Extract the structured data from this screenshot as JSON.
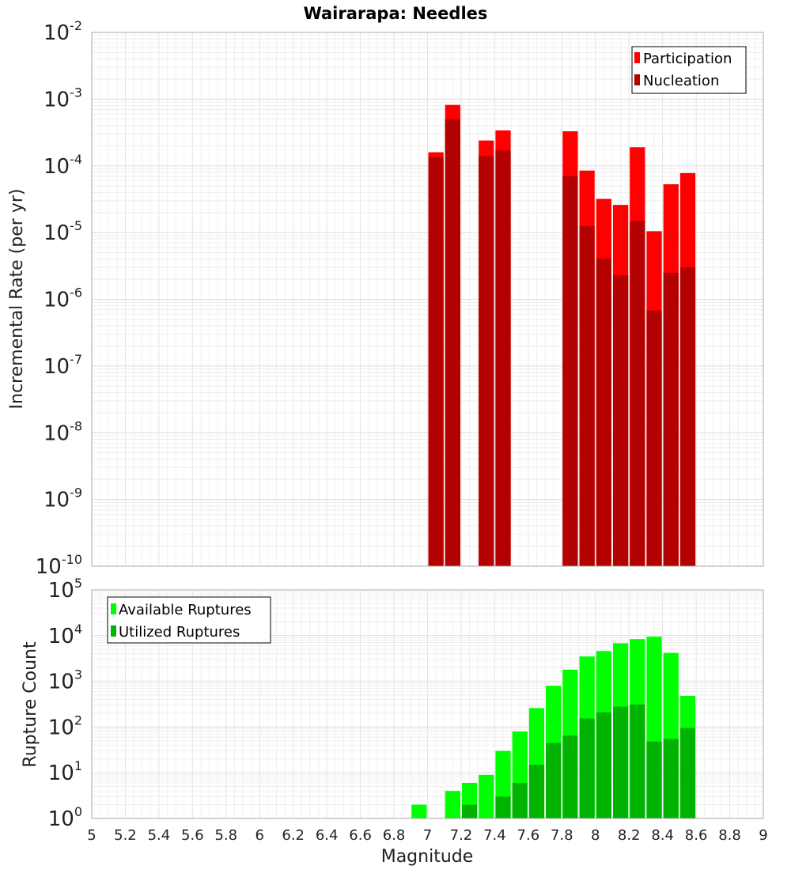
{
  "chart_data": [
    {
      "type": "bar",
      "title": "Wairarapa: Needles",
      "ylabel": "Incremental Rate (per yr)",
      "xlabel": "",
      "y_scale": "log",
      "x_range": [
        5,
        9
      ],
      "y_exp_range": [
        -10,
        -2
      ],
      "y_tick_labels": [
        {
          "exp": "-2"
        },
        {
          "exp": "-3"
        },
        {
          "exp": "-4"
        },
        {
          "exp": "-5"
        },
        {
          "exp": "-6"
        },
        {
          "exp": "-7"
        },
        {
          "exp": "-8"
        },
        {
          "exp": "-9"
        },
        {
          "exp": "-10"
        }
      ],
      "grid": true,
      "legend_position": "top-right",
      "bar_width": 0.1,
      "colors": {
        "participation": "#ff0000",
        "nucleation": "#b30000"
      },
      "series": [
        {
          "name": "Participation",
          "points": [
            [
              7.05,
              0.00016
            ],
            [
              7.15,
              0.00082
            ],
            [
              7.35,
              0.00024
            ],
            [
              7.45,
              0.00034
            ],
            [
              7.85,
              0.00033
            ],
            [
              7.95,
              8.5e-05
            ],
            [
              8.05,
              3.2e-05
            ],
            [
              8.15,
              2.6e-05
            ],
            [
              8.25,
              0.00019
            ],
            [
              8.35,
              1.05e-05
            ],
            [
              8.45,
              5.3e-05
            ],
            [
              8.55,
              7.8e-05
            ]
          ]
        },
        {
          "name": "Nucleation",
          "points": [
            [
              7.05,
              0.000135
            ],
            [
              7.15,
              0.0005
            ],
            [
              7.35,
              0.00014
            ],
            [
              7.45,
              0.00017
            ],
            [
              7.85,
              7e-05
            ],
            [
              7.95,
              1.25e-05
            ],
            [
              8.05,
              4.1e-06
            ],
            [
              8.15,
              2.3e-06
            ],
            [
              8.25,
              1.5e-05
            ],
            [
              8.35,
              6.8e-07
            ],
            [
              8.45,
              2.5e-06
            ],
            [
              8.55,
              3e-06
            ]
          ]
        }
      ]
    },
    {
      "type": "bar",
      "title": "",
      "ylabel": "Rupture Count",
      "xlabel": "Magnitude",
      "y_scale": "log",
      "x_range": [
        5,
        9
      ],
      "y_exp_range": [
        0,
        5
      ],
      "y_tick_labels": [
        {
          "exp": "5"
        },
        {
          "exp": "4"
        },
        {
          "exp": "3"
        },
        {
          "exp": "2"
        },
        {
          "exp": "1"
        },
        {
          "exp": "0"
        }
      ],
      "x_tick_labels": [
        "5",
        "5.2",
        "5.4",
        "5.6",
        "5.8",
        "6",
        "6.2",
        "6.4",
        "6.6",
        "6.8",
        "7",
        "7.2",
        "7.4",
        "7.6",
        "7.8",
        "8",
        "8.2",
        "8.4",
        "8.6",
        "8.8",
        "9"
      ],
      "grid": true,
      "legend_position": "top-left",
      "bar_width": 0.1,
      "colors": {
        "available": "#00ff00",
        "utilized": "#00b300"
      },
      "series": [
        {
          "name": "Available Ruptures",
          "points": [
            [
              6.95,
              2
            ],
            [
              7.05,
              1
            ],
            [
              7.15,
              4
            ],
            [
              7.25,
              6
            ],
            [
              7.35,
              9
            ],
            [
              7.45,
              30
            ],
            [
              7.55,
              80
            ],
            [
              7.65,
              260
            ],
            [
              7.75,
              800
            ],
            [
              7.85,
              1800
            ],
            [
              7.95,
              3500
            ],
            [
              8.05,
              4600
            ],
            [
              8.15,
              6800
            ],
            [
              8.25,
              8400
            ],
            [
              8.35,
              9500
            ],
            [
              8.45,
              4200
            ],
            [
              8.55,
              480
            ],
            [
              8.65,
              1
            ]
          ]
        },
        {
          "name": "Utilized Ruptures",
          "points": [
            [
              7.05,
              1
            ],
            [
              7.15,
              1
            ],
            [
              7.25,
              2
            ],
            [
              7.35,
              1
            ],
            [
              7.45,
              3
            ],
            [
              7.55,
              6
            ],
            [
              7.65,
              15
            ],
            [
              7.75,
              45
            ],
            [
              7.85,
              65
            ],
            [
              7.95,
              155
            ],
            [
              8.05,
              210
            ],
            [
              8.15,
              280
            ],
            [
              8.25,
              310
            ],
            [
              8.35,
              48
            ],
            [
              8.45,
              55
            ],
            [
              8.55,
              95
            ]
          ]
        }
      ]
    }
  ]
}
